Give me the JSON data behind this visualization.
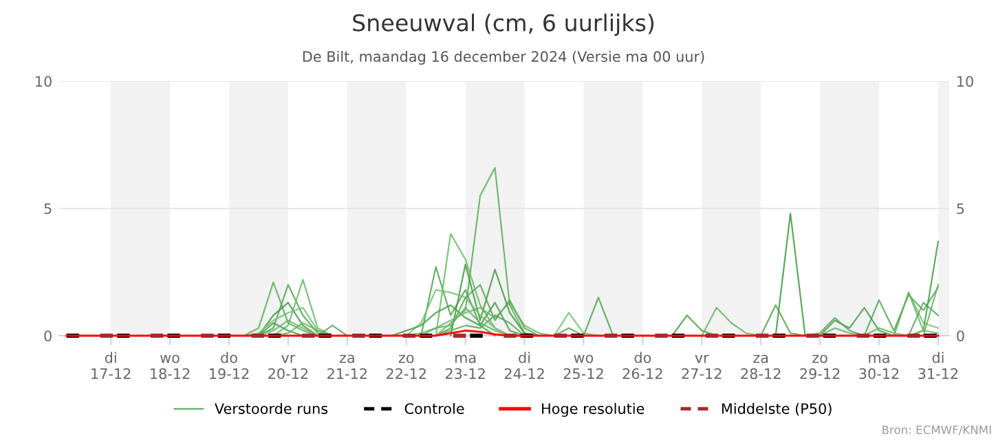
{
  "chart_data": {
    "type": "line",
    "title": "Sneeuwval (cm, 6 uurlijks)",
    "subtitle": "De Bilt, maandag 16 december 2024 (Versie ma 00 uur)",
    "x": [
      "2024-12-16T06:00",
      "2024-12-16T12:00",
      "2024-12-16T18:00",
      "2024-12-17T00:00",
      "2024-12-17T06:00",
      "2024-12-17T12:00",
      "2024-12-17T18:00",
      "2024-12-18T00:00",
      "2024-12-18T06:00",
      "2024-12-18T12:00",
      "2024-12-18T18:00",
      "2024-12-19T00:00",
      "2024-12-19T06:00",
      "2024-12-19T12:00",
      "2024-12-19T18:00",
      "2024-12-20T00:00",
      "2024-12-20T06:00",
      "2024-12-20T12:00",
      "2024-12-20T18:00",
      "2024-12-21T00:00",
      "2024-12-21T06:00",
      "2024-12-21T12:00",
      "2024-12-21T18:00",
      "2024-12-22T00:00",
      "2024-12-22T06:00",
      "2024-12-22T12:00",
      "2024-12-22T18:00",
      "2024-12-23T00:00",
      "2024-12-23T06:00",
      "2024-12-23T12:00",
      "2024-12-23T18:00",
      "2024-12-24T00:00",
      "2024-12-24T06:00",
      "2024-12-24T12:00",
      "2024-12-24T18:00",
      "2024-12-25T00:00",
      "2024-12-25T06:00",
      "2024-12-25T12:00",
      "2024-12-25T18:00",
      "2024-12-26T00:00",
      "2024-12-26T06:00",
      "2024-12-26T12:00",
      "2024-12-26T18:00",
      "2024-12-27T00:00",
      "2024-12-27T06:00",
      "2024-12-27T12:00",
      "2024-12-27T18:00",
      "2024-12-28T00:00",
      "2024-12-28T06:00",
      "2024-12-28T12:00",
      "2024-12-28T18:00",
      "2024-12-29T00:00",
      "2024-12-29T06:00",
      "2024-12-29T12:00",
      "2024-12-29T18:00",
      "2024-12-30T00:00",
      "2024-12-30T06:00",
      "2024-12-30T12:00",
      "2024-12-30T18:00",
      "2024-12-31T00:00"
    ],
    "series": [
      {
        "name": "Verstoorde runs",
        "color": "#5cae5c",
        "values": [
          null,
          null,
          null,
          null,
          null,
          null,
          null,
          null,
          null,
          null,
          null,
          null,
          0,
          0.3,
          2.1,
          0.5,
          0.2,
          0,
          null,
          null,
          null,
          null,
          null,
          null,
          null,
          0,
          0.5,
          1.0,
          5.5,
          6.6,
          1.2,
          0.1,
          0,
          null,
          null,
          null,
          null,
          null,
          null,
          null,
          null,
          null,
          null,
          null,
          null,
          null,
          null,
          null,
          null,
          null,
          null,
          null,
          null,
          null,
          null,
          null,
          null,
          null,
          null,
          null
        ]
      },
      {
        "color": "#4fa64f",
        "values": [
          null,
          null,
          null,
          null,
          null,
          null,
          null,
          null,
          null,
          null,
          null,
          null,
          null,
          0,
          0.3,
          2.0,
          0.8,
          0.1,
          0,
          null,
          null,
          null,
          null,
          null,
          0,
          2.7,
          0.8,
          1.8,
          0.4,
          0,
          null,
          null,
          null,
          null,
          null,
          null,
          null,
          null,
          null,
          null,
          null,
          null,
          null,
          null,
          null,
          null,
          null,
          0,
          1.2,
          0.1,
          0,
          null,
          null,
          null,
          null,
          null,
          null,
          null,
          null,
          null
        ]
      },
      {
        "color": "#66b866",
        "values": [
          null,
          null,
          null,
          null,
          null,
          null,
          null,
          null,
          null,
          null,
          null,
          null,
          null,
          null,
          0,
          0.4,
          2.2,
          0.3,
          0,
          null,
          null,
          null,
          null,
          null,
          null,
          0,
          4.0,
          3.0,
          1.2,
          0.3,
          0,
          null,
          null,
          null,
          null,
          null,
          null,
          null,
          null,
          null,
          null,
          null,
          null,
          null,
          null,
          null,
          null,
          null,
          null,
          null,
          null,
          null,
          null,
          null,
          null,
          null,
          null,
          null,
          null,
          null
        ]
      },
      {
        "color": "#3f9a3f",
        "values": [
          null,
          null,
          null,
          null,
          null,
          null,
          null,
          null,
          null,
          null,
          null,
          null,
          null,
          0,
          0.8,
          1.3,
          0.4,
          0,
          null,
          null,
          null,
          null,
          null,
          null,
          null,
          null,
          0,
          2.8,
          0.6,
          2.6,
          0.9,
          0.1,
          0,
          null,
          null,
          null,
          null,
          null,
          null,
          null,
          null,
          null,
          null,
          null,
          null,
          null,
          null,
          null,
          0,
          4.8,
          0,
          null,
          null,
          null,
          null,
          null,
          null,
          null,
          null,
          null
        ]
      },
      {
        "color": "#72bf72",
        "values": [
          null,
          null,
          null,
          null,
          null,
          null,
          null,
          null,
          null,
          null,
          null,
          null,
          0,
          0.1,
          0.6,
          0.9,
          1.1,
          0.2,
          0,
          null,
          null,
          null,
          null,
          0,
          0.5,
          1.8,
          1.7,
          1.5,
          0.8,
          0.3,
          0,
          null,
          null,
          0,
          0.9,
          0.1,
          0,
          null,
          null,
          null,
          null,
          null,
          null,
          null,
          null,
          null,
          null,
          null,
          null,
          null,
          null,
          null,
          null,
          null,
          null,
          null,
          0,
          1.7,
          0.5,
          0.3
        ]
      },
      {
        "color": "#54a854",
        "values": [
          null,
          null,
          null,
          null,
          null,
          null,
          null,
          null,
          null,
          null,
          null,
          null,
          null,
          null,
          null,
          null,
          null,
          0,
          0.4,
          0,
          null,
          null,
          null,
          null,
          null,
          0,
          0.3,
          1.5,
          2.0,
          0.6,
          1.4,
          0.3,
          0,
          null,
          null,
          0,
          1.5,
          0,
          null,
          null,
          null,
          null,
          null,
          null,
          null,
          null,
          null,
          null,
          null,
          null,
          null,
          null,
          null,
          null,
          0,
          1.4,
          0.2,
          1.6,
          1.0,
          1.9
        ]
      },
      {
        "color": "#449f44",
        "values": [
          null,
          null,
          null,
          null,
          null,
          null,
          null,
          null,
          null,
          null,
          null,
          null,
          null,
          0,
          0.5,
          0.2,
          0,
          null,
          null,
          null,
          null,
          null,
          0,
          0.2,
          0.4,
          0.9,
          1.2,
          0.7,
          0.4,
          1.3,
          0.2,
          0,
          null,
          null,
          null,
          null,
          null,
          null,
          null,
          null,
          null,
          0,
          0.8,
          0.2,
          0,
          null,
          null,
          null,
          null,
          null,
          null,
          0,
          0.6,
          0.3,
          1.1,
          0.2,
          0,
          0,
          0.2,
          3.7
        ]
      },
      {
        "color": "#6bb36b",
        "values": [
          null,
          null,
          null,
          null,
          null,
          null,
          null,
          null,
          null,
          null,
          null,
          null,
          null,
          0,
          0.2,
          0.6,
          0.3,
          0,
          null,
          null,
          null,
          null,
          null,
          null,
          0,
          0.3,
          0.6,
          0.9,
          1.1,
          0.7,
          1.3,
          0.4,
          0.1,
          0,
          null,
          null,
          null,
          null,
          null,
          null,
          null,
          null,
          null,
          0,
          1.1,
          0.5,
          0.1,
          0,
          null,
          null,
          null,
          0,
          0.3,
          0.1,
          0,
          null,
          0,
          1.7,
          0.2,
          0.1
        ]
      },
      {
        "color": "#5aa35a",
        "values": [
          null,
          null,
          null,
          null,
          null,
          null,
          null,
          null,
          null,
          null,
          null,
          null,
          null,
          null,
          null,
          null,
          null,
          null,
          null,
          null,
          null,
          null,
          null,
          null,
          null,
          0,
          0.2,
          0.4,
          0.3,
          0.8,
          0.5,
          0,
          null,
          0,
          0.3,
          0,
          null,
          null,
          null,
          null,
          null,
          null,
          null,
          null,
          null,
          null,
          null,
          null,
          null,
          null,
          0,
          0.1,
          0.7,
          0.2,
          0,
          null,
          null,
          0,
          1.3,
          0.8
        ]
      },
      {
        "color": "#60b560",
        "values": [
          null,
          null,
          null,
          null,
          null,
          null,
          null,
          null,
          null,
          null,
          null,
          null,
          null,
          null,
          0,
          0.1,
          0.5,
          0.2,
          0,
          null,
          null,
          null,
          null,
          0,
          0.1,
          0.3,
          0.4,
          1.1,
          0.5,
          0.2,
          0,
          null,
          null,
          null,
          null,
          null,
          null,
          null,
          null,
          null,
          null,
          null,
          null,
          null,
          null,
          null,
          null,
          null,
          null,
          null,
          null,
          null,
          null,
          null,
          0,
          0.3,
          0.1,
          0,
          0,
          2.0
        ]
      },
      {
        "name": "Controle",
        "color": "#000000",
        "line_style": "dashed",
        "values": [
          0,
          0,
          0,
          0,
          0,
          0,
          0,
          0,
          0,
          0,
          0,
          0,
          0,
          0,
          0,
          0,
          0,
          0,
          0,
          0,
          0,
          0,
          0,
          0,
          0,
          0,
          0,
          0,
          0,
          0,
          0,
          0,
          0,
          0,
          0,
          0,
          0,
          0,
          0,
          0,
          0,
          0,
          0,
          0,
          0,
          0,
          0,
          0,
          0,
          0,
          0,
          0,
          0,
          0,
          0,
          0,
          0,
          0,
          0,
          0
        ]
      },
      {
        "name": "Hoge resolutie",
        "color": "#ff0000",
        "values": [
          0,
          0,
          0,
          0,
          0,
          0,
          0,
          0,
          0,
          0,
          0,
          0,
          0,
          0,
          0,
          0,
          0,
          0,
          0,
          0,
          0,
          0,
          0,
          0,
          0,
          0,
          0.1,
          0.2,
          0.15,
          0.05,
          0,
          0,
          0,
          0,
          0,
          0,
          0,
          0,
          0,
          0,
          0,
          0,
          0,
          0,
          0,
          0,
          0,
          0,
          0,
          0,
          0,
          0,
          0,
          0,
          0,
          0,
          0,
          0,
          0,
          0
        ]
      },
      {
        "name": "Middelste (P50)",
        "color": "#a52a2a",
        "line_style": "dashed",
        "values": [
          0,
          0,
          0,
          0,
          0,
          0,
          0,
          0,
          0,
          0,
          0,
          0,
          0,
          0,
          0,
          0,
          0,
          0,
          0,
          0,
          0,
          0,
          0,
          0,
          0,
          0,
          0,
          0,
          0,
          0,
          0,
          0,
          0,
          0,
          0,
          0,
          0,
          0,
          0,
          0,
          0,
          0,
          0,
          0,
          0,
          0,
          0,
          0,
          0,
          0,
          0,
          0,
          0,
          0,
          0,
          0,
          0,
          0,
          0,
          0
        ]
      }
    ],
    "xlim": [
      "2024-12-16T03:00",
      "2024-12-31T04:30"
    ],
    "xticks": [
      {
        "value": "2024-12-17",
        "label": "di\n17-12"
      },
      {
        "value": "2024-12-18",
        "label": "wo\n18-12"
      },
      {
        "value": "2024-12-19",
        "label": "do\n19-12"
      },
      {
        "value": "2024-12-20",
        "label": "vr\n20-12"
      },
      {
        "value": "2024-12-21",
        "label": "za\n21-12"
      },
      {
        "value": "2024-12-22",
        "label": "zo\n22-12"
      },
      {
        "value": "2024-12-23",
        "label": "ma\n23-12"
      },
      {
        "value": "2024-12-24",
        "label": "di\n24-12"
      },
      {
        "value": "2024-12-25",
        "label": "wo\n25-12"
      },
      {
        "value": "2024-12-26",
        "label": "do\n26-12"
      },
      {
        "value": "2024-12-27",
        "label": "vr\n27-12"
      },
      {
        "value": "2024-12-28",
        "label": "za\n28-12"
      },
      {
        "value": "2024-12-29",
        "label": "zo\n29-12"
      },
      {
        "value": "2024-12-30",
        "label": "ma\n30-12"
      },
      {
        "value": "2024-12-31",
        "label": "di\n31-12"
      }
    ],
    "ylim": [
      0,
      10
    ],
    "yticks": [
      0,
      5,
      10
    ],
    "y2lim": [
      0,
      10
    ],
    "y2ticks": [
      0,
      5,
      10
    ],
    "bands": [
      {
        "axis": "x",
        "from": "2024-12-17",
        "to": "2024-12-18",
        "color": "#f2f2f2"
      },
      {
        "axis": "x",
        "from": "2024-12-19",
        "to": "2024-12-20",
        "color": "#f2f2f2"
      },
      {
        "axis": "x",
        "from": "2024-12-21",
        "to": "2024-12-22",
        "color": "#f2f2f2"
      },
      {
        "axis": "x",
        "from": "2024-12-23",
        "to": "2024-12-24",
        "color": "#f2f2f2"
      },
      {
        "axis": "x",
        "from": "2024-12-25",
        "to": "2024-12-26",
        "color": "#f2f2f2"
      },
      {
        "axis": "x",
        "from": "2024-12-27",
        "to": "2024-12-28",
        "color": "#f2f2f2"
      },
      {
        "axis": "x",
        "from": "2024-12-29",
        "to": "2024-12-30",
        "color": "#f2f2f2"
      },
      {
        "axis": "x",
        "from": "2024-12-31",
        "to": "2024-12-31T04:30",
        "color": "#f2f2f2"
      }
    ],
    "grid": "y",
    "legend": "bottom",
    "marker": "none",
    "annotations": [
      "Bron: ECMWF/KNMI"
    ]
  }
}
